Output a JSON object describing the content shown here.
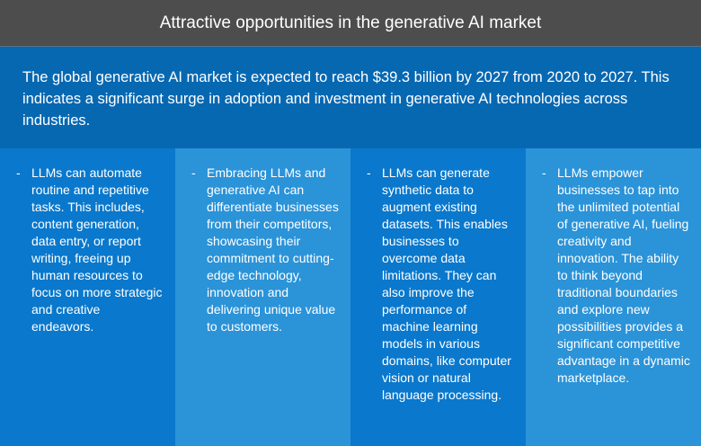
{
  "header": {
    "title": "Attractive opportunities in the generative AI market"
  },
  "intro": {
    "text": "The global generative AI market is expected to reach $39.3 billion by 2027 from 2020 to 2027. This indicates a significant surge in adoption and investment in generative AI technologies across industries."
  },
  "columns": [
    {
      "bullet": "-",
      "text": "LLMs can automate routine and repetitive tasks. This includes, content generation, data entry, or report writing, freeing up human resources to focus on more strategic and creative endeavors."
    },
    {
      "bullet": "-",
      "text": "Embracing LLMs and generative AI can differentiate businesses from their competitors, showcasing their commitment to cutting-edge technology, innovation and delivering unique value to customers."
    },
    {
      "bullet": "-",
      "text": "LLMs can generate synthetic data to augment existing datasets. This enables businesses to overcome data limitations. They can also improve the performance of machine learning models in various domains, like computer vision or natural language processing."
    },
    {
      "bullet": "-",
      "text": "LLMs empower businesses to tap into the unlimited potential of generative AI, fueling creativity and innovation. The ability to think beyond traditional boundaries and explore new possibilities provides a significant competitive advantage in a dynamic marketplace."
    }
  ]
}
